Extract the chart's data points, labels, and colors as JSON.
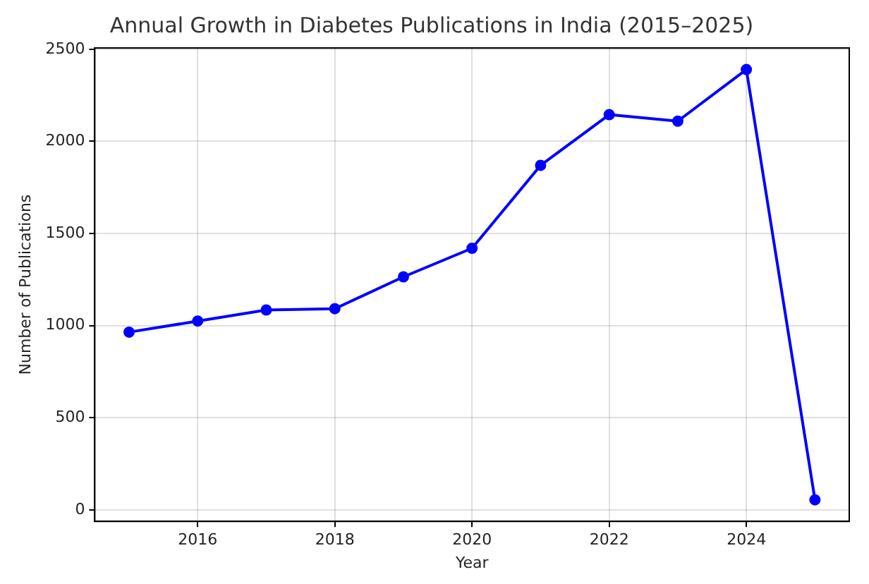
{
  "chart_data": {
    "type": "line",
    "title": "Annual Growth in Diabetes Publications in India (2015–2025)",
    "xlabel": "Year",
    "ylabel": "Number of Publications",
    "x": [
      2015,
      2016,
      2017,
      2018,
      2019,
      2020,
      2021,
      2022,
      2023,
      2024,
      2025
    ],
    "series": [
      {
        "color": "#0000ff",
        "values": [
          965,
          1025,
          1085,
          1092,
          1265,
          1420,
          1870,
          2145,
          2110,
          2390,
          55
        ]
      }
    ],
    "xlim": [
      2014.5,
      2025.5
    ],
    "xticks": [
      2016,
      2018,
      2020,
      2022,
      2024
    ],
    "ylim": [
      -62,
      2507
    ],
    "yticks": [
      0,
      500,
      1000,
      1500,
      2000,
      2500
    ],
    "grid": true,
    "marker": "circle",
    "line_style": "solid",
    "legend": false
  }
}
